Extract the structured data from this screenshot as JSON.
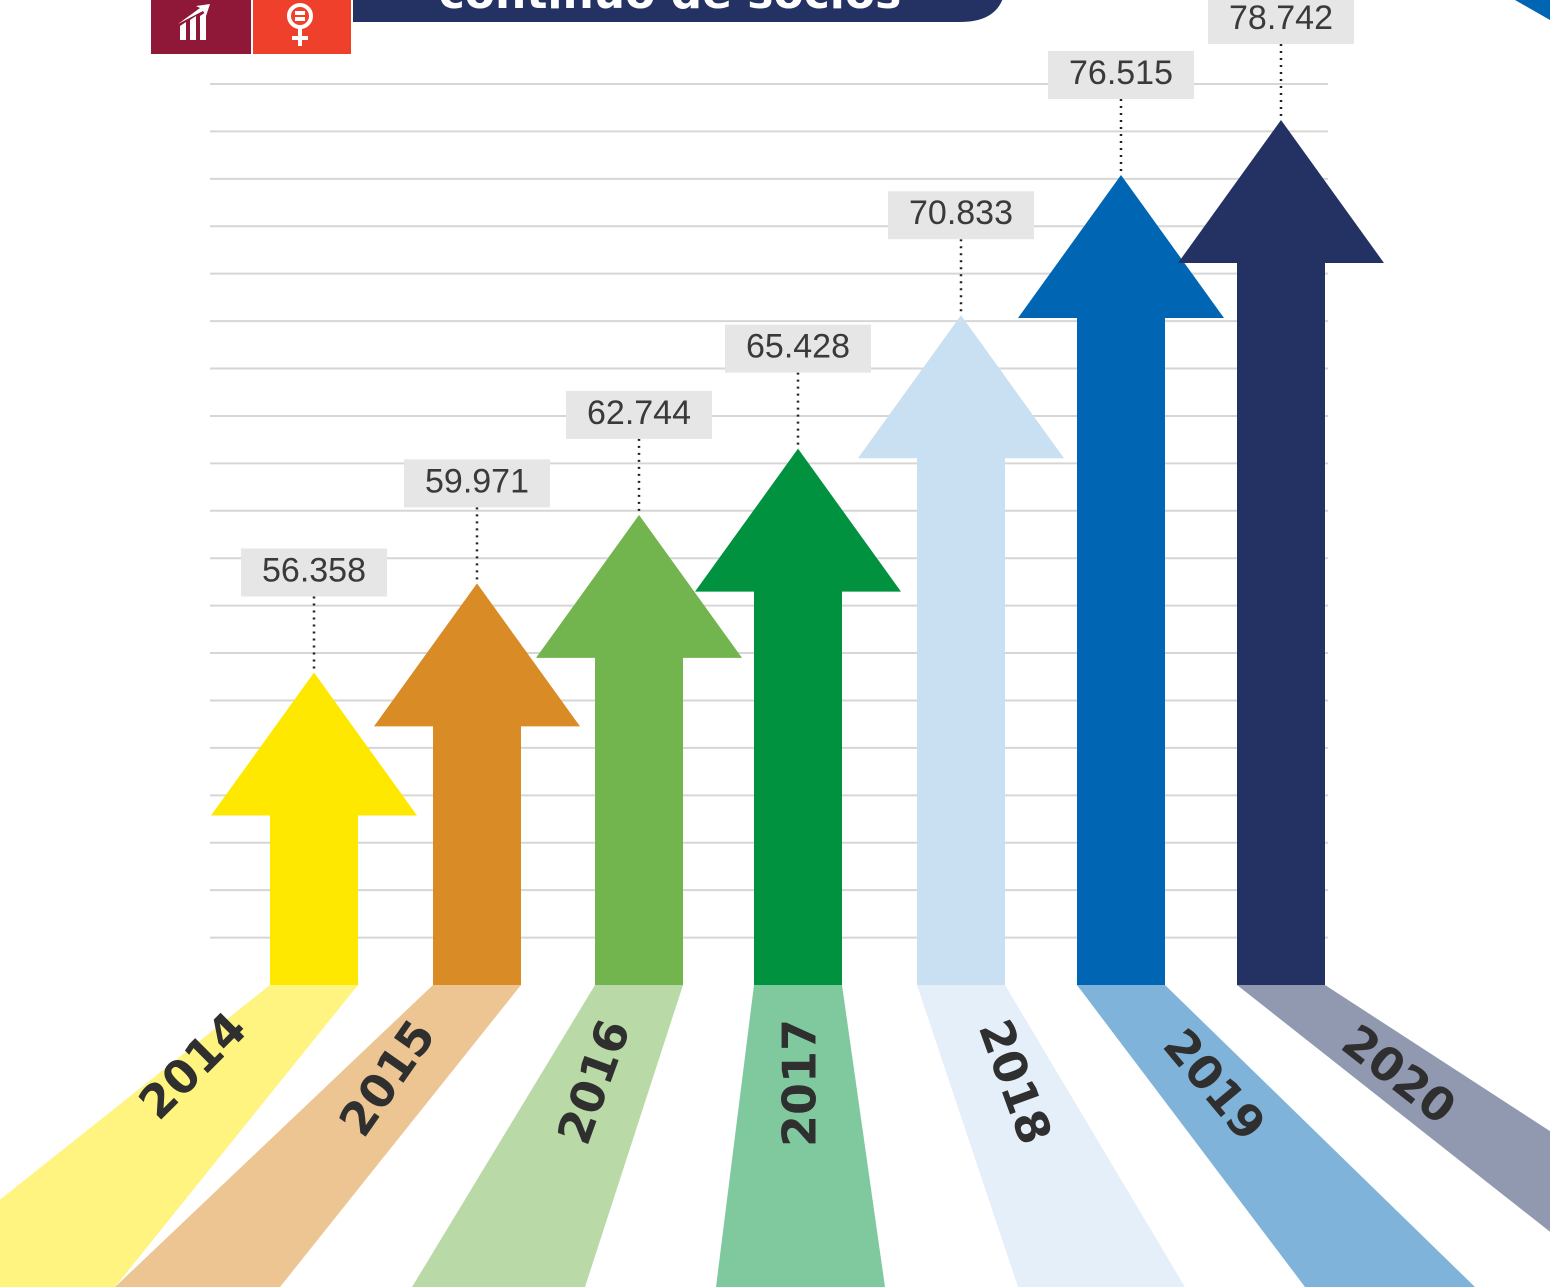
{
  "chart_data": {
    "type": "arrow",
    "title": "continuo de socios",
    "categories": [
      "2014",
      "2015",
      "2016",
      "2017",
      "2018",
      "2019",
      "2020"
    ],
    "values": [
      56358,
      59971,
      62744,
      65428,
      70833,
      76515,
      78742
    ],
    "value_labels": [
      "56.358",
      "59.971",
      "62.744",
      "65.428",
      "70.833",
      "76.515",
      "78.742"
    ],
    "colors": [
      "#ffe800",
      "#d98b26",
      "#72b54e",
      "#00923f",
      "#c9dff2",
      "#0066b3",
      "#233263"
    ],
    "ylim": [
      43700,
      80200
    ],
    "grid": true
  }
}
